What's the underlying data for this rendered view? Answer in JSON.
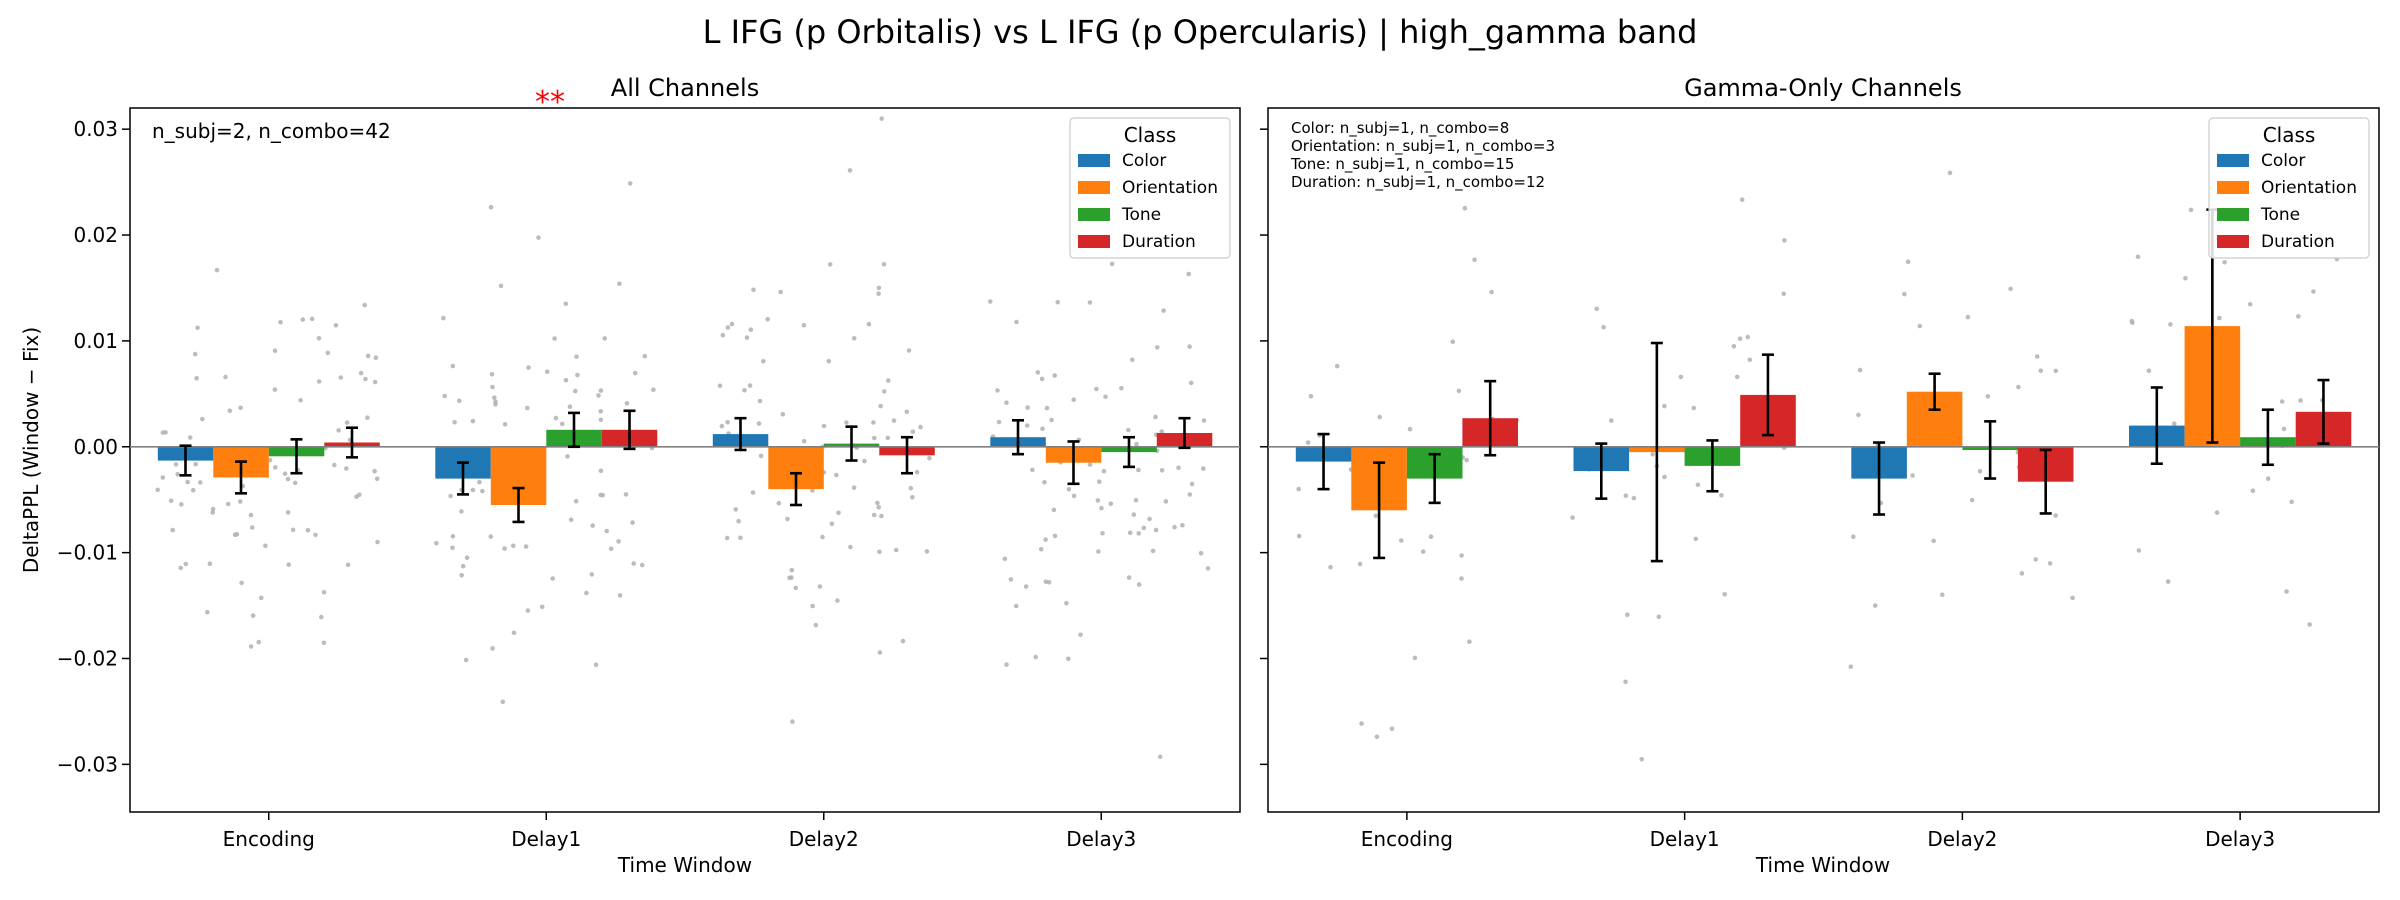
{
  "figure": {
    "title": "L IFG (p Orbitalis) vs L IFG (p Opercularis)  |  high_gamma band",
    "ylabel": "DeltaPPL (Window − Fix)"
  },
  "colors": {
    "Color": "#1f77b4",
    "Orientation": "#ff7f0e",
    "Tone": "#2ca02c",
    "Duration": "#d62728",
    "significance": "#ff0000",
    "scatter": "#b0b0b0"
  },
  "chart_data": [
    {
      "type": "bar",
      "title": "All Channels",
      "xlabel": "Time Window",
      "ylabel": "DeltaPPL (Window − Fix)",
      "categories": [
        "Encoding",
        "Delay1",
        "Delay2",
        "Delay3"
      ],
      "ylim": [
        -0.0345,
        0.032
      ],
      "yticks": [
        -0.03,
        -0.02,
        -0.01,
        0.0,
        0.01,
        0.02,
        0.03
      ],
      "ytick_labels": [
        "−0.03",
        "−0.02",
        "−0.01",
        "0.00",
        "0.01",
        "0.02",
        "0.03"
      ],
      "annotation": "n_subj=2, n_combo=42",
      "significance": [
        {
          "category": "Delay1",
          "label": "**"
        }
      ],
      "legend": {
        "title": "Class",
        "position": "top-right"
      },
      "series": [
        {
          "name": "Color",
          "values": [
            -0.0013,
            -0.003,
            0.0012,
            0.0009
          ],
          "errors": [
            0.0014,
            0.0015,
            0.0015,
            0.0016
          ]
        },
        {
          "name": "Orientation",
          "values": [
            -0.0029,
            -0.0055,
            -0.004,
            -0.0015
          ],
          "errors": [
            0.0015,
            0.0016,
            0.0015,
            0.002
          ]
        },
        {
          "name": "Tone",
          "values": [
            -0.0009,
            0.0016,
            0.0003,
            -0.0005
          ],
          "errors": [
            0.0016,
            0.0016,
            0.0016,
            0.0014
          ]
        },
        {
          "name": "Duration",
          "values": [
            0.0004,
            0.0016,
            -0.0008,
            0.0013
          ],
          "errors": [
            0.0014,
            0.0018,
            0.0017,
            0.0014
          ]
        }
      ]
    },
    {
      "type": "bar",
      "title": "Gamma-Only Channels",
      "xlabel": "Time Window",
      "categories": [
        "Encoding",
        "Delay1",
        "Delay2",
        "Delay3"
      ],
      "ylim": [
        -0.0345,
        0.032
      ],
      "annotation_lines": [
        "Color: n_subj=1, n_combo=8",
        "Orientation: n_subj=1, n_combo=3",
        "Tone: n_subj=1, n_combo=15",
        "Duration: n_subj=1, n_combo=12"
      ],
      "legend": {
        "title": "Class",
        "position": "top-right"
      },
      "series": [
        {
          "name": "Color",
          "values": [
            -0.0014,
            -0.0023,
            -0.003,
            0.002
          ],
          "errors": [
            0.0026,
            0.0026,
            0.0034,
            0.0036
          ]
        },
        {
          "name": "Orientation",
          "values": [
            -0.006,
            -0.0005,
            0.0052,
            0.0114
          ],
          "errors": [
            0.0045,
            0.0103,
            0.0017,
            0.011
          ]
        },
        {
          "name": "Tone",
          "values": [
            -0.003,
            -0.0018,
            -0.0003,
            0.0009
          ],
          "errors": [
            0.0023,
            0.0024,
            0.0027,
            0.0026
          ]
        },
        {
          "name": "Duration",
          "values": [
            0.0027,
            0.0049,
            -0.0033,
            0.0033
          ],
          "errors": [
            0.0035,
            0.0038,
            0.003,
            0.003
          ]
        }
      ]
    }
  ]
}
